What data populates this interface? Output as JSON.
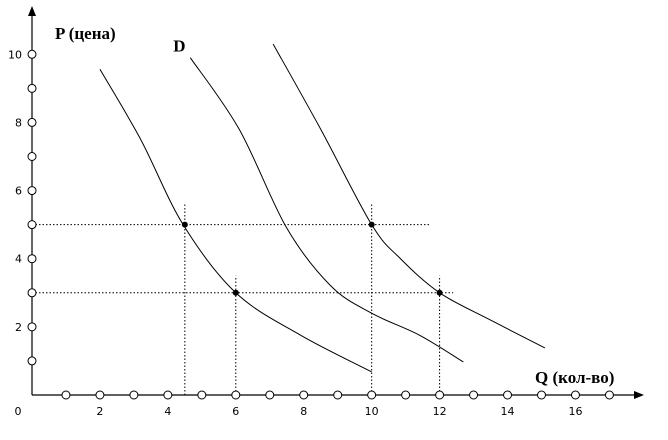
{
  "chart_data": {
    "type": "line",
    "ylabel": "P (цена)",
    "xlabel": "Q (кол-во)",
    "annotation": "D",
    "xlim": [
      0,
      17.9
    ],
    "ylim": [
      0,
      11.3
    ],
    "xticks": [
      0,
      2,
      4,
      6,
      8,
      10,
      12,
      14,
      16
    ],
    "yticks": [
      2,
      4,
      6,
      8,
      10
    ],
    "xminorticks": [
      1,
      3,
      5,
      7,
      9,
      11,
      13,
      15,
      17
    ],
    "yminorticks": [
      1,
      3,
      5,
      7,
      9
    ],
    "color": "#000000",
    "series": [
      {
        "x": [
          2.0,
          3.2,
          4.45,
          6.0,
          7.9,
          10.0
        ],
        "values": [
          9.56,
          7.5,
          5.0,
          3.0,
          1.76,
          0.68
        ]
      },
      {
        "x": [
          4.66,
          6.1,
          7.5,
          8.8,
          10.0,
          11.4,
          12.7
        ],
        "values": [
          9.9,
          7.8,
          4.9,
          3.2,
          2.4,
          1.76,
          0.97
        ]
      },
      {
        "x": [
          7.1,
          8.5,
          10.0,
          10.85,
          12.0,
          13.5,
          15.1
        ],
        "values": [
          10.3,
          7.8,
          5.0,
          4.0,
          3.0,
          2.2,
          1.38
        ]
      }
    ],
    "points": {
      "x": [
        4.5,
        6,
        10,
        12
      ],
      "values": [
        5,
        3,
        5,
        3
      ]
    },
    "guides": [
      {
        "x": [
          0,
          11.7
        ],
        "values": [
          5,
          5
        ]
      },
      {
        "x": [
          0,
          12.4
        ],
        "values": [
          3,
          3
        ]
      },
      {
        "x": [
          4.5,
          4.5
        ],
        "values": [
          0,
          5.6
        ]
      },
      {
        "x": [
          6,
          6
        ],
        "values": [
          0,
          3.5
        ]
      },
      {
        "x": [
          10,
          10
        ],
        "values": [
          0,
          5.6
        ]
      },
      {
        "x": [
          12,
          12
        ],
        "values": [
          0,
          3.5
        ]
      }
    ]
  }
}
